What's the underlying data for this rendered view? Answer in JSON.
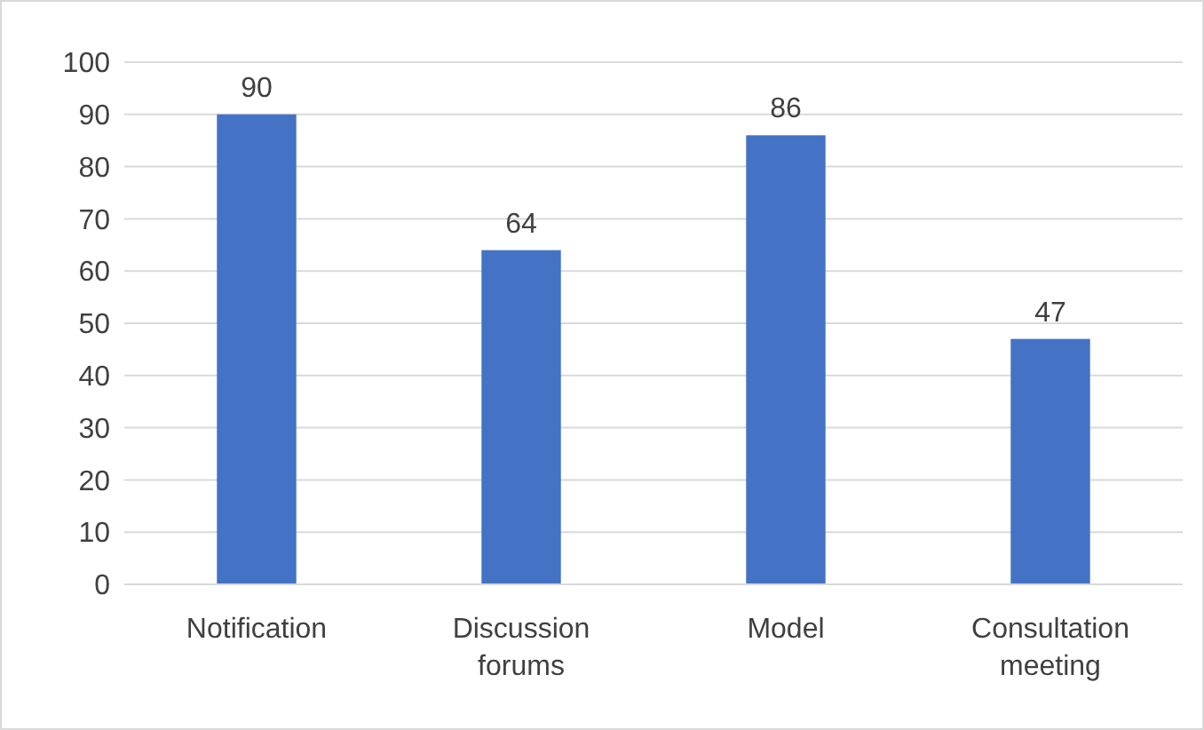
{
  "chart_data": {
    "type": "bar",
    "categories": [
      "Notification",
      "Discussion forums",
      "Model",
      "Consultation meeting"
    ],
    "values": [
      90,
      64,
      86,
      47
    ],
    "color": "#4472c4",
    "ylim": [
      0,
      100
    ],
    "yticks": [
      0,
      10,
      20,
      30,
      40,
      50,
      60,
      70,
      80,
      90,
      100
    ],
    "grid": "y",
    "data_labels": true
  }
}
